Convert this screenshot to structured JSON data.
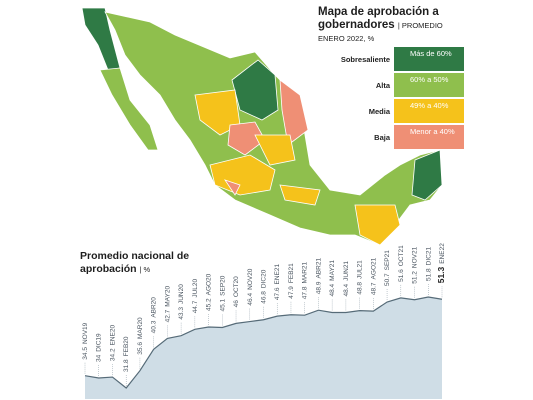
{
  "map": {
    "title": "Mapa de aprobación a gobernadores",
    "subtitle": "| PROMEDIO ENERO 2022, %",
    "legend": [
      {
        "label": "Sobresaliente",
        "range": "Más de 60%",
        "color": "#2f7a45"
      },
      {
        "label": "Alta",
        "range": "60% a 50%",
        "color": "#8fbf4d"
      },
      {
        "label": "Media",
        "range": "49% a 40%",
        "color": "#f5c21b"
      },
      {
        "label": "Baja",
        "range": "Menor a 40%",
        "color": "#ef8f75"
      }
    ]
  },
  "chart_data": {
    "type": "area",
    "title": "Promedio nacional de aprobación",
    "unit": "| %",
    "categories": [
      "NOV19",
      "DIC19",
      "ENE20",
      "FEB20",
      "MAR20",
      "ABR20",
      "MAY20",
      "JUN20",
      "JUL20",
      "AGO20",
      "SEP20",
      "OCT20",
      "NOV20",
      "DIC20",
      "ENE21",
      "FEB21",
      "MAR21",
      "ABR21",
      "MAY21",
      "JUN21",
      "JUL21",
      "AGO21",
      "SEP21",
      "OCT21",
      "NOV21",
      "DIC21",
      "ENE22"
    ],
    "values": [
      34.5,
      34.0,
      34.2,
      31.8,
      35.6,
      40.3,
      42.7,
      43.3,
      44.7,
      45.2,
      45.1,
      46.0,
      46.4,
      46.8,
      47.6,
      47.9,
      47.8,
      48.9,
      48.4,
      48.4,
      48.8,
      48.7,
      50.7,
      51.6,
      51.2,
      51.8,
      51.3
    ],
    "color": "#cfdde6",
    "line_color": "#566b78"
  }
}
